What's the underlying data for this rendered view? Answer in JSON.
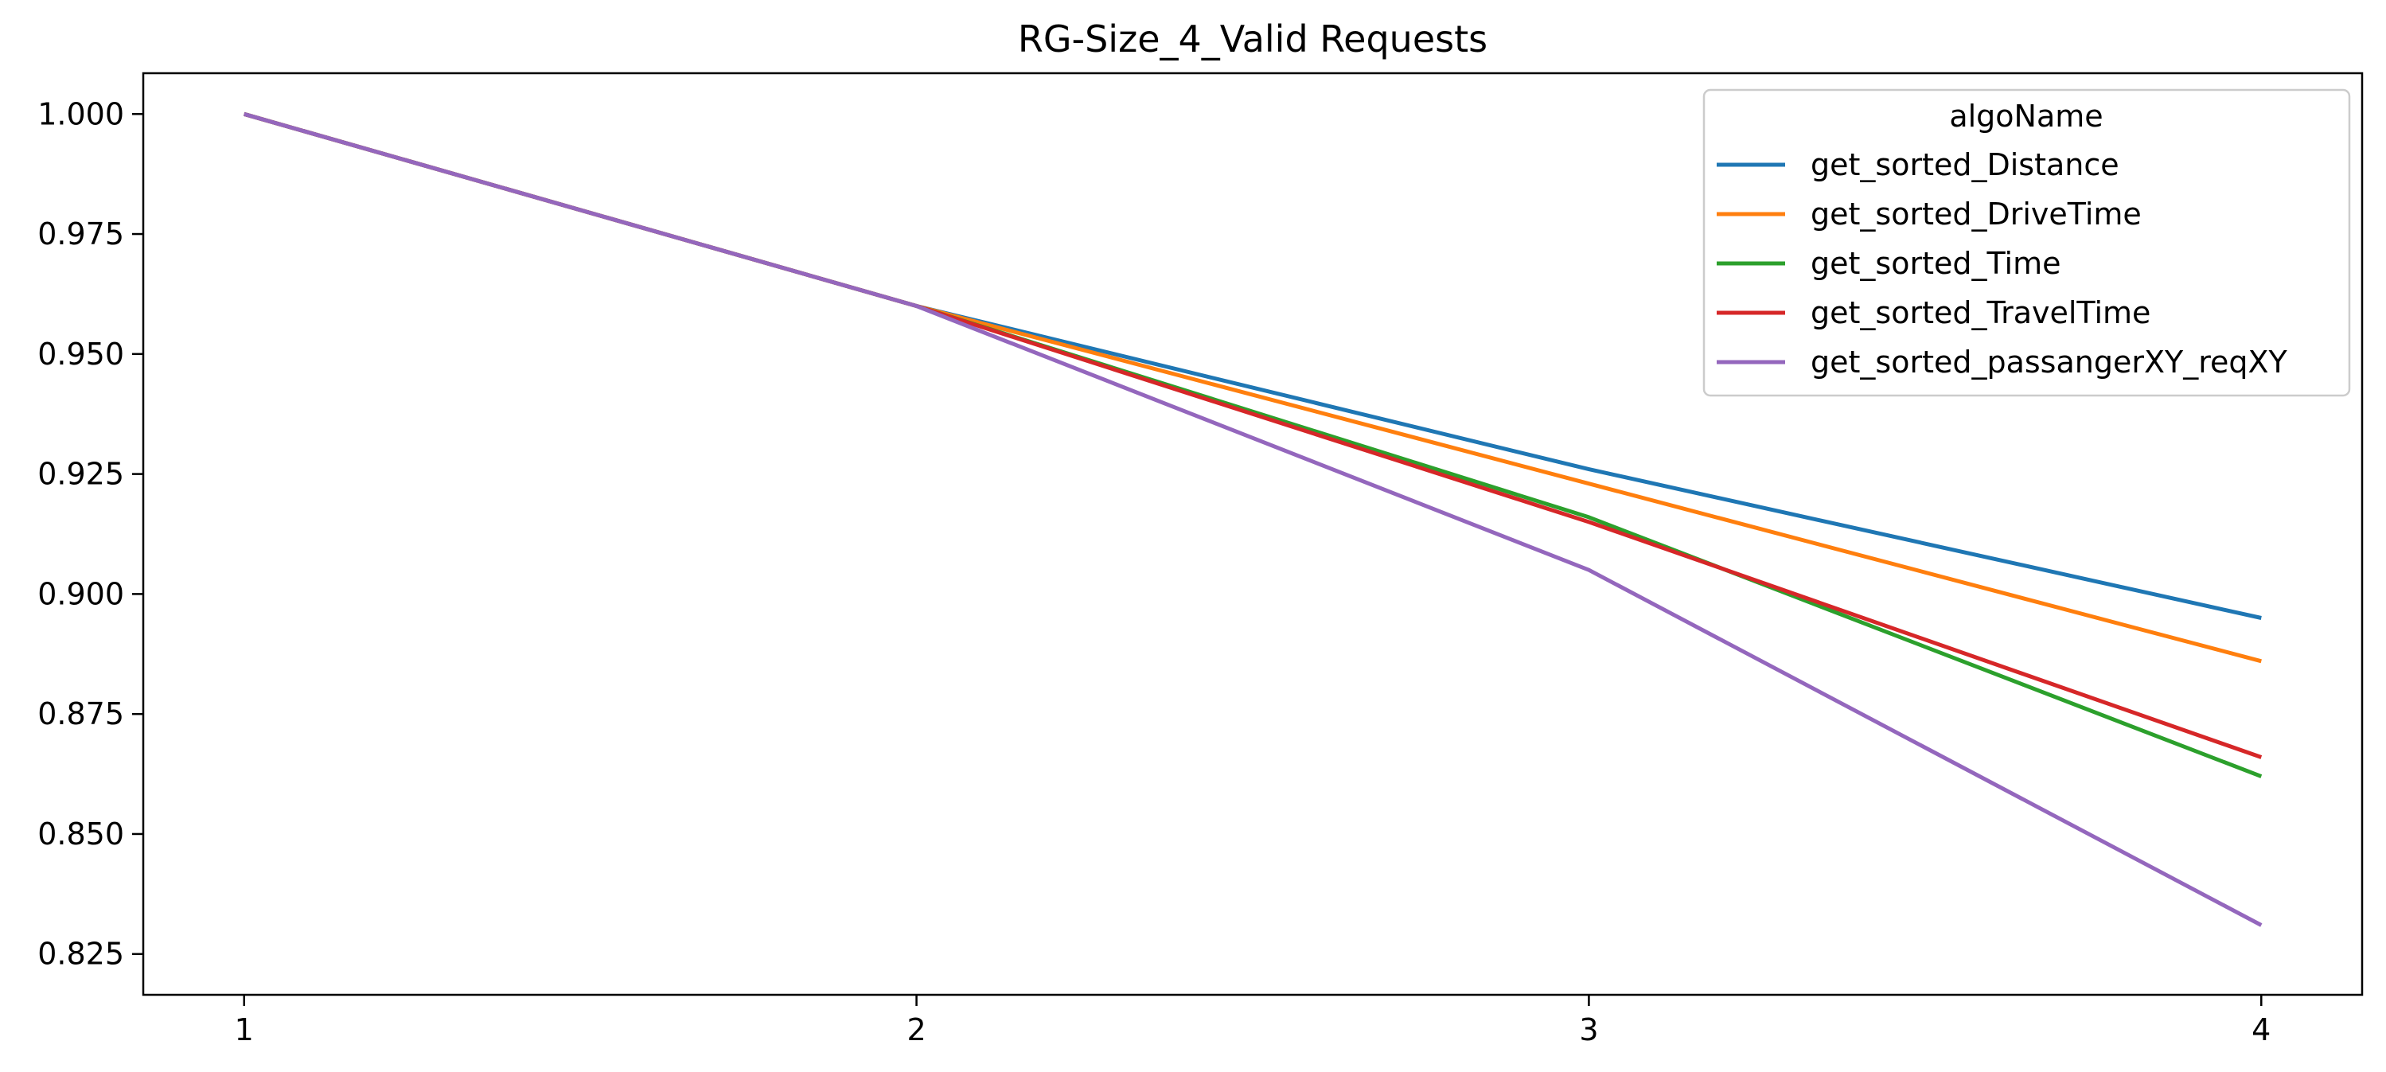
{
  "chart_data": {
    "type": "line",
    "title": "RG-Size_4_Valid Requests",
    "xlabel": "",
    "ylabel": "",
    "x": [
      1,
      2,
      3,
      4
    ],
    "xticks": [
      "1",
      "2",
      "3",
      "4"
    ],
    "yticks": [
      "0.825",
      "0.850",
      "0.875",
      "0.900",
      "0.925",
      "0.950",
      "0.975",
      "1.000"
    ],
    "ylim": [
      0.8165,
      1.0085
    ],
    "xlim": [
      0.85,
      4.15
    ],
    "grid": false,
    "legend": {
      "title": "algoName",
      "placement": "top-right"
    },
    "series": [
      {
        "name": "get_sorted_Distance",
        "color": "#1f77b4",
        "values": [
          1.0,
          0.96,
          0.926,
          0.895
        ]
      },
      {
        "name": "get_sorted_DriveTime",
        "color": "#ff7f0e",
        "values": [
          1.0,
          0.96,
          0.923,
          0.886
        ]
      },
      {
        "name": "get_sorted_Time",
        "color": "#2ca02c",
        "values": [
          1.0,
          0.96,
          0.916,
          0.862
        ]
      },
      {
        "name": "get_sorted_TravelTime",
        "color": "#d62728",
        "values": [
          1.0,
          0.96,
          0.915,
          0.866
        ]
      },
      {
        "name": "get_sorted_passangerXY_reqXY",
        "color": "#9467bd",
        "values": [
          1.0,
          0.96,
          0.905,
          0.831
        ]
      }
    ]
  }
}
